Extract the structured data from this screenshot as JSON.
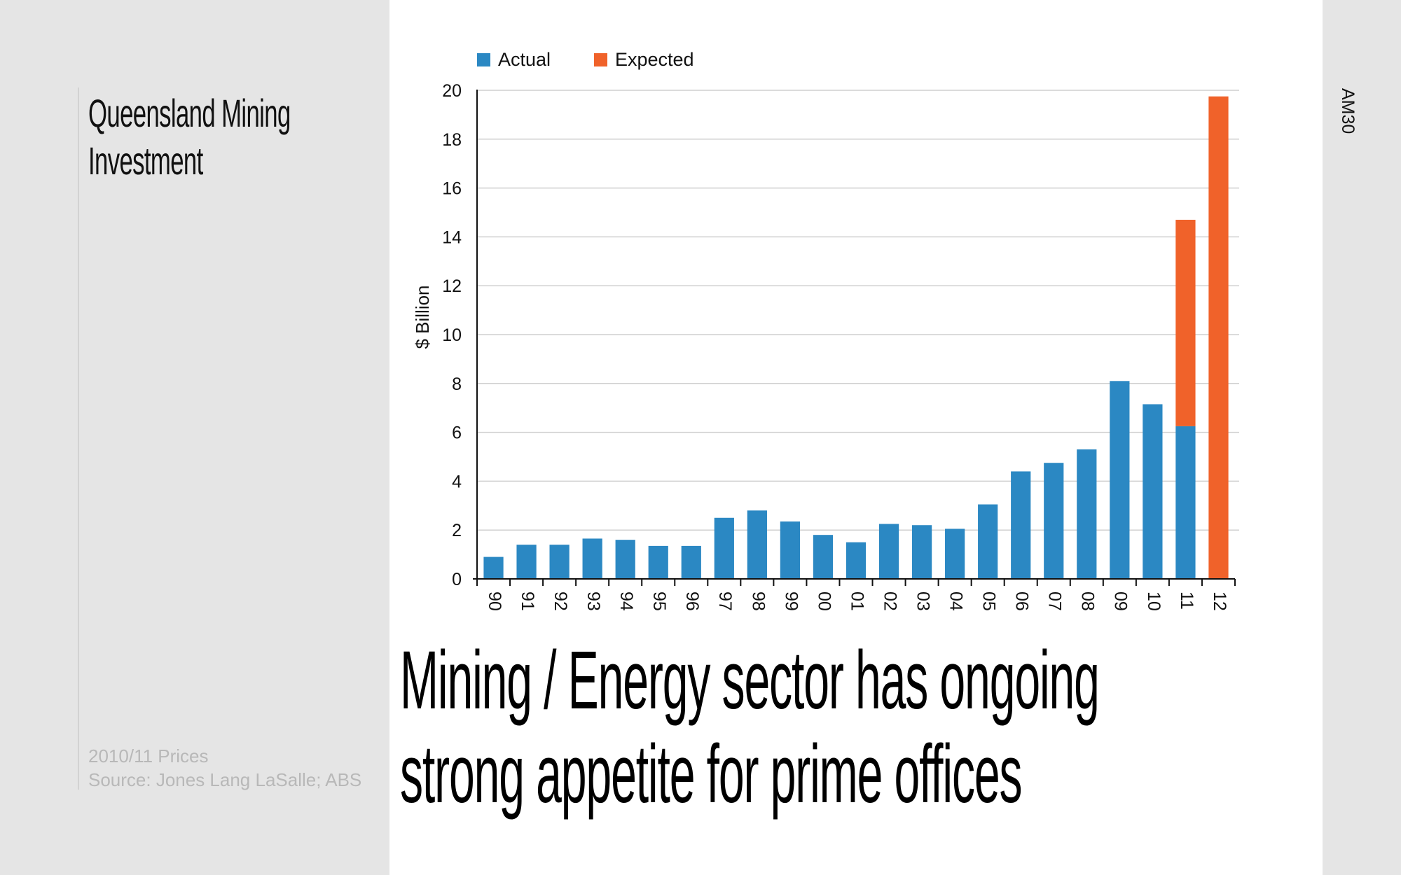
{
  "slide": {
    "side_title_lines": [
      "Queensland Mining",
      "Investment"
    ],
    "price_note": "2010/11 Prices",
    "source_note": "Source: Jones Lang LaSalle; ABS",
    "slide_code": "AM30",
    "headline_lines": [
      "Mining / Energy sector has ongoing",
      "strong appetite for prime offices"
    ]
  },
  "colors": {
    "actual": "#2b88c3",
    "expected": "#f0622a",
    "grid": "#cfcfcf",
    "axis": "#111111"
  },
  "chart_data": {
    "type": "bar",
    "stacked": true,
    "title": "",
    "xlabel": "",
    "ylabel": "$ Billion",
    "ylim": [
      0,
      20
    ],
    "yticks": [
      0,
      2,
      4,
      6,
      8,
      10,
      12,
      14,
      16,
      18,
      20
    ],
    "grid": true,
    "legend_position": "top-left",
    "categories": [
      "90",
      "91",
      "92",
      "93",
      "94",
      "95",
      "96",
      "97",
      "98",
      "99",
      "00",
      "01",
      "02",
      "03",
      "04",
      "05",
      "06",
      "07",
      "08",
      "09",
      "10",
      "11",
      "12"
    ],
    "series": [
      {
        "name": "Actual",
        "color": "#2b88c3",
        "values": [
          0.9,
          1.4,
          1.4,
          1.65,
          1.6,
          1.35,
          1.35,
          2.5,
          2.8,
          2.35,
          1.8,
          1.5,
          2.25,
          2.2,
          2.05,
          3.05,
          4.4,
          4.75,
          5.3,
          8.1,
          7.15,
          6.25,
          0
        ]
      },
      {
        "name": "Expected",
        "color": "#f0622a",
        "values": [
          0,
          0,
          0,
          0,
          0,
          0,
          0,
          0,
          0,
          0,
          0,
          0,
          0,
          0,
          0,
          0,
          0,
          0,
          0,
          0,
          0,
          8.45,
          19.75
        ]
      }
    ]
  }
}
